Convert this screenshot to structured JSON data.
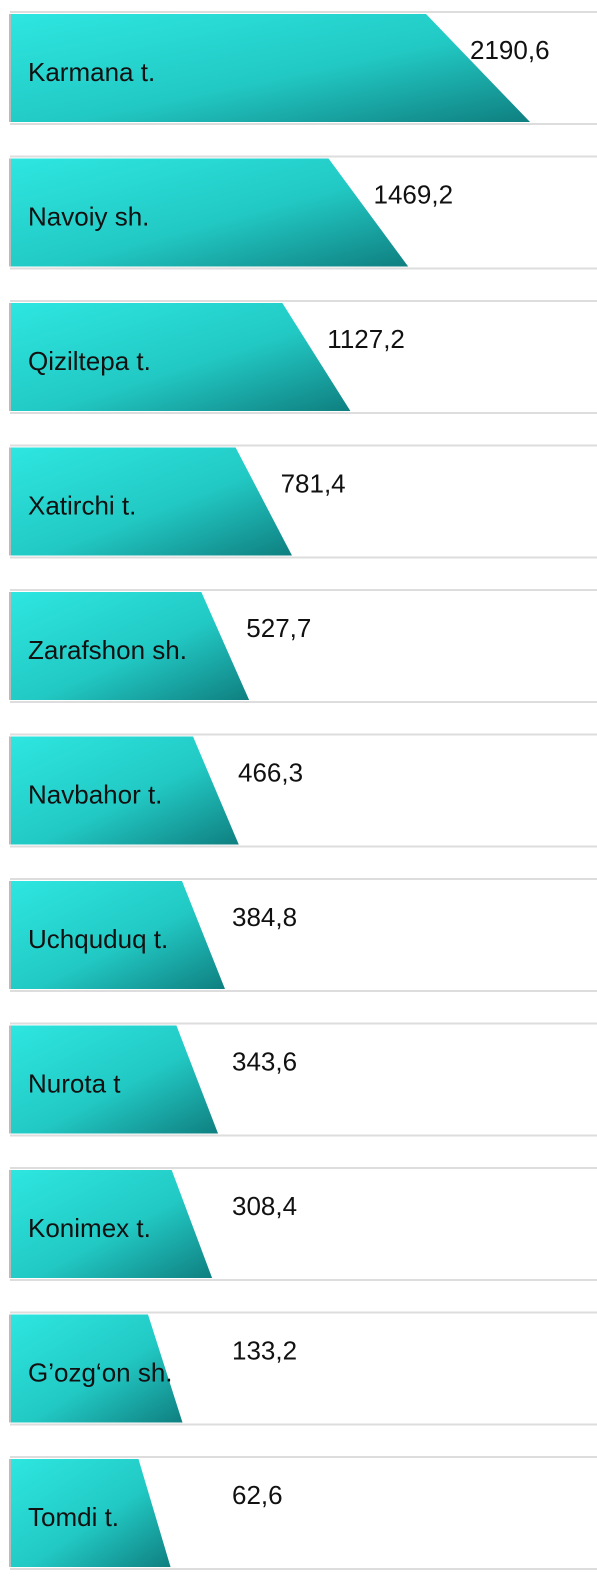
{
  "chart_data": {
    "type": "bar",
    "orientation": "horizontal",
    "color": "#2ad6d0",
    "categories": [
      "Karmana t.",
      "Navoiy sh.",
      "Qiziltepa t.",
      "Xatirchi t.",
      "Zarafshon sh.",
      "Navbahor t.",
      "Uchquduq t.",
      "Nurota t",
      "Konimex t.",
      "G’ozg‘on sh.",
      "Tomdi t."
    ],
    "values": [
      2190.6,
      1469.2,
      1127.2,
      781.4,
      527.7,
      466.3,
      384.8,
      343.6,
      308.4,
      133.2,
      62.6
    ],
    "value_labels": [
      "2190,6",
      "1469,2",
      "1127,2",
      "781,4",
      "527,7",
      "466,3",
      "384,8",
      "343,6",
      "308,4",
      "133,2",
      "62,6"
    ]
  }
}
